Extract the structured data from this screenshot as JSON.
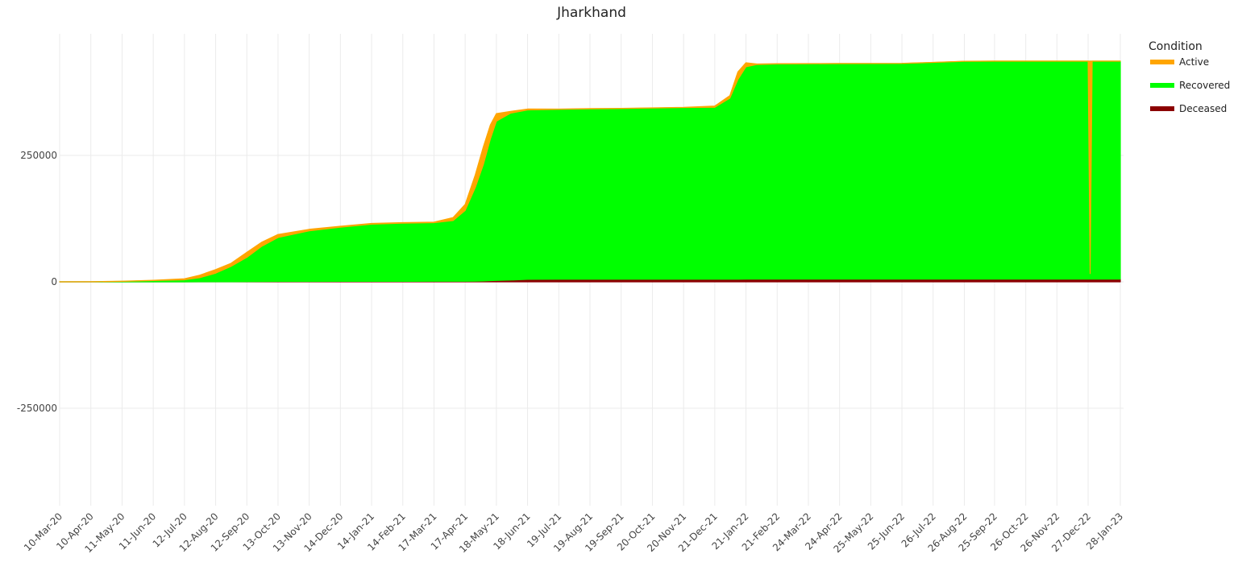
{
  "chart_data": {
    "type": "area",
    "title": "Jharkhand",
    "xlabel": "",
    "ylabel": "",
    "ylim": [
      -480000,
      490000
    ],
    "yticks": [
      250000,
      0,
      -250000
    ],
    "ytick_labels": [
      "250000",
      "0",
      "-250000"
    ],
    "xticks": [
      "10-Mar-20",
      "10-Apr-20",
      "11-May-20",
      "11-Jun-20",
      "12-Jul-20",
      "12-Aug-20",
      "12-Sep-20",
      "13-Oct-20",
      "13-Nov-20",
      "14-Dec-20",
      "14-Jan-21",
      "14-Feb-21",
      "17-Mar-21",
      "17-Apr-21",
      "18-May-21",
      "18-Jun-21",
      "19-Jul-21",
      "19-Aug-21",
      "19-Sep-21",
      "20-Oct-21",
      "20-Nov-21",
      "21-Dec-21",
      "21-Jan-22",
      "21-Feb-22",
      "24-Mar-22",
      "24-Apr-22",
      "25-May-22",
      "25-Jun-22",
      "26-Jul-22",
      "26-Aug-22",
      "25-Sep-22",
      "26-Oct-22",
      "26-Nov-22",
      "27-Dec-22",
      "28-Jan-23"
    ],
    "grid": true,
    "legend": {
      "title": "Condition",
      "position": "right"
    },
    "x": [
      "2020-03-10",
      "2020-04-10",
      "2020-05-11",
      "2020-06-11",
      "2020-07-12",
      "2020-07-27",
      "2020-08-12",
      "2020-08-27",
      "2020-09-12",
      "2020-09-27",
      "2020-10-13",
      "2020-11-13",
      "2020-12-14",
      "2021-01-14",
      "2021-02-14",
      "2021-03-17",
      "2021-04-05",
      "2021-04-17",
      "2021-04-27",
      "2021-05-05",
      "2021-05-12",
      "2021-05-18",
      "2021-06-01",
      "2021-06-18",
      "2021-07-19",
      "2021-08-19",
      "2021-09-19",
      "2021-10-20",
      "2021-11-20",
      "2021-12-21",
      "2022-01-05",
      "2022-01-13",
      "2022-01-21",
      "2022-02-01",
      "2022-02-21",
      "2022-03-24",
      "2022-04-24",
      "2022-05-25",
      "2022-06-25",
      "2022-07-26",
      "2022-08-26",
      "2022-09-25",
      "2022-10-26",
      "2022-11-26",
      "2022-12-27",
      "2022-12-29",
      "2022-12-31",
      "2023-01-02",
      "2023-01-28"
    ],
    "series": [
      {
        "name": "Deceased",
        "color": "#8b0000",
        "values": [
          0,
          5,
          10,
          20,
          40,
          70,
          140,
          250,
          400,
          550,
          700,
          850,
          950,
          1000,
          1030,
          1080,
          1150,
          1250,
          1450,
          1800,
          2300,
          2700,
          3500,
          4900,
          5100,
          5100,
          5120,
          5130,
          5140,
          5150,
          5180,
          5220,
          5250,
          5290,
          5310,
          5320,
          5320,
          5320,
          5320,
          5320,
          5320,
          5320,
          5320,
          5320,
          5320,
          5320,
          5320,
          5320,
          5320
        ]
      },
      {
        "name": "Recovered",
        "color": "#00ff00",
        "values": [
          0,
          100,
          900,
          2500,
          4000,
          8000,
          17000,
          30000,
          48000,
          70000,
          87000,
          100000,
          107000,
          113000,
          115000,
          116000,
          120000,
          140000,
          185000,
          230000,
          280000,
          315000,
          330000,
          335000,
          336000,
          337000,
          337500,
          338500,
          339500,
          340000,
          358000,
          395000,
          420000,
          424500,
          425500,
          426000,
          426200,
          426300,
          426500,
          428500,
          430700,
          431000,
          431000,
          431000,
          431000,
          431000,
          431000,
          431000,
          431000
        ]
      },
      {
        "name": "Active",
        "color": "#ffa500",
        "values": [
          0,
          200,
          400,
          600,
          2000,
          5000,
          7000,
          6000,
          10000,
          8000,
          6000,
          3000,
          2000,
          1500,
          1000,
          1000,
          6000,
          12000,
          25000,
          35000,
          28000,
          15000,
          3500,
          1800,
          500,
          400,
          300,
          300,
          300,
          2500,
          5000,
          15000,
          8000,
          1000,
          500,
          300,
          200,
          200,
          200,
          200,
          200,
          200,
          200,
          200,
          200,
          -420000,
          200,
          200,
          200
        ]
      }
    ]
  }
}
